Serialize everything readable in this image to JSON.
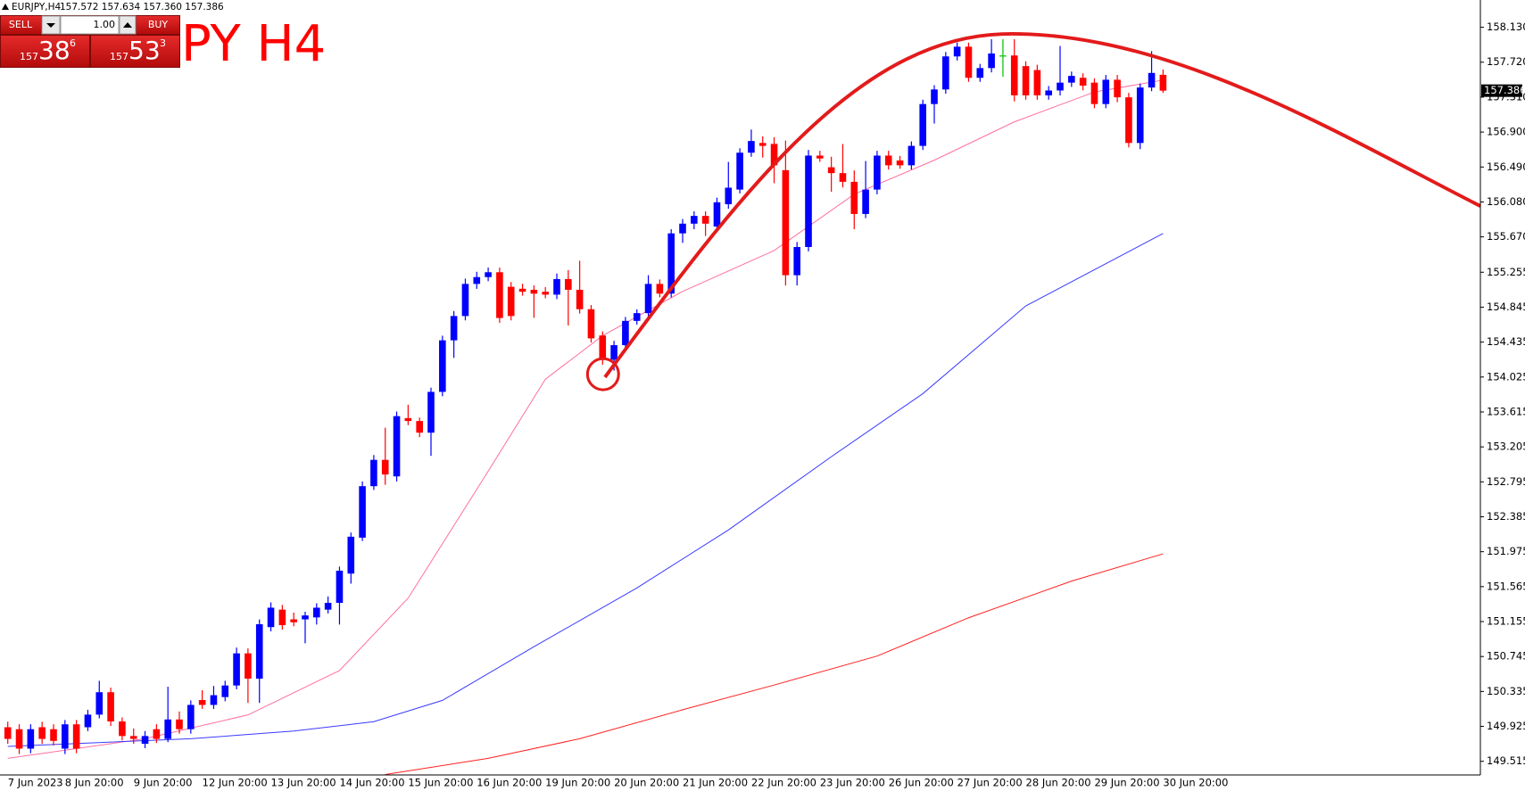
{
  "header": {
    "symbol": "EURJPY,H4",
    "ohlc": "157.572 157.634 157.360 157.386"
  },
  "panel": {
    "sell": "SELL",
    "buy": "BUY",
    "lot": "1.00",
    "bid": {
      "prefix": "157",
      "digits": "38",
      "point": "6"
    },
    "ask": {
      "prefix": "157",
      "digits": "53",
      "point": "3"
    }
  },
  "chart_data": {
    "type": "candlestick",
    "title": "PY H4",
    "up_color": "#0000ff",
    "down_color": "#ff0000",
    "doji_color": "#00c000",
    "ylim": [
      149.355,
      158.45
    ],
    "yticks": [
      {
        "value": 158.13,
        "label": "158.130"
      },
      {
        "value": 157.72,
        "label": "157.720"
      },
      {
        "value": 157.31,
        "label": "157.310"
      },
      {
        "value": 156.9,
        "label": "156.900"
      },
      {
        "value": 156.49,
        "label": "156.490"
      },
      {
        "value": 156.08,
        "label": "156.080"
      },
      {
        "value": 155.67,
        "label": "155.670"
      },
      155.255,
      154.845,
      154.435,
      154.025,
      153.615,
      153.205,
      152.795,
      152.385,
      151.975,
      151.565,
      151.155,
      150.745,
      150.335,
      149.925,
      149.515
    ],
    "last_price": {
      "value": 157.386,
      "label": "157.386"
    },
    "categories": [
      "7 Jun 2023",
      null,
      null,
      null,
      null,
      "8 Jun 20:00",
      null,
      null,
      null,
      null,
      null,
      "9 Jun 20:00",
      null,
      null,
      null,
      null,
      null,
      "12 Jun 20:00",
      null,
      null,
      null,
      null,
      null,
      "13 Jun 20:00",
      null,
      null,
      null,
      null,
      null,
      "14 Jun 20:00",
      null,
      null,
      null,
      null,
      null,
      "15 Jun 20:00",
      null,
      null,
      null,
      null,
      null,
      "16 Jun 20:00",
      null,
      null,
      null,
      null,
      null,
      "19 Jun 20:00",
      null,
      null,
      null,
      null,
      null,
      "20 Jun 20:00",
      null,
      null,
      null,
      null,
      null,
      "21 Jun 20:00",
      null,
      null,
      null,
      null,
      null,
      "22 Jun 20:00",
      null,
      null,
      null,
      null,
      null,
      "23 Jun 20:00",
      null,
      null,
      null,
      null,
      null,
      "26 Jun 20:00",
      null,
      null,
      null,
      null,
      null,
      "27 Jun 20:00",
      null,
      null,
      null,
      null,
      null,
      "28 Jun 20:00",
      null,
      null,
      null,
      null,
      null,
      "29 Jun 20:00",
      null,
      null,
      null,
      null,
      null,
      "30 Jun 20:00"
    ],
    "candles": [
      [
        149.915,
        149.98,
        149.72,
        149.778
      ],
      [
        149.892,
        149.95,
        149.6,
        149.664
      ],
      [
        149.664,
        149.95,
        149.61,
        149.892
      ],
      [
        149.915,
        149.98,
        149.72,
        149.778
      ],
      [
        149.892,
        149.95,
        149.7,
        149.755
      ],
      [
        149.664,
        150.0,
        149.6,
        149.949
      ],
      [
        149.949,
        150.0,
        149.61,
        149.664
      ],
      [
        149.915,
        150.12,
        149.87,
        150.063
      ],
      [
        150.063,
        150.46,
        150.02,
        150.326
      ],
      [
        150.326,
        150.38,
        149.93,
        149.983
      ],
      [
        149.983,
        150.03,
        149.76,
        149.812
      ],
      [
        149.812,
        149.9,
        149.72,
        149.778
      ],
      [
        149.721,
        149.87,
        149.67,
        149.812
      ],
      [
        149.892,
        149.95,
        149.73,
        149.778
      ],
      [
        149.778,
        150.39,
        149.74,
        150.006
      ],
      [
        150.006,
        150.1,
        149.84,
        149.892
      ],
      [
        149.892,
        150.23,
        149.84,
        150.177
      ],
      [
        150.234,
        150.35,
        150.13,
        150.177
      ],
      [
        150.177,
        150.4,
        150.13,
        150.291
      ],
      [
        150.269,
        150.46,
        150.22,
        150.405
      ],
      [
        150.405,
        150.85,
        150.36,
        150.782
      ],
      [
        150.782,
        150.84,
        150.2,
        150.485
      ],
      [
        150.485,
        151.18,
        150.2,
        151.124
      ],
      [
        151.09,
        151.38,
        151.04,
        151.318
      ],
      [
        151.295,
        151.35,
        151.06,
        151.113
      ],
      [
        151.181,
        151.26,
        151.1,
        151.147
      ],
      [
        151.181,
        151.27,
        150.9,
        151.227
      ],
      [
        151.204,
        151.37,
        151.12,
        151.318
      ],
      [
        151.295,
        151.45,
        151.25,
        151.375
      ],
      [
        151.375,
        151.8,
        151.12,
        151.752
      ],
      [
        151.718,
        152.2,
        151.6,
        152.151
      ],
      [
        152.14,
        152.8,
        152.1,
        152.744
      ],
      [
        152.744,
        153.11,
        152.7,
        153.053
      ],
      [
        153.053,
        153.43,
        152.76,
        152.881
      ],
      [
        152.859,
        153.62,
        152.8,
        153.566
      ],
      [
        153.543,
        153.7,
        153.46,
        153.509
      ],
      [
        153.509,
        153.55,
        153.32,
        153.372
      ],
      [
        153.372,
        153.9,
        153.1,
        153.851
      ],
      [
        153.851,
        154.51,
        153.8,
        154.456
      ],
      [
        154.456,
        154.8,
        154.25,
        154.741
      ],
      [
        154.741,
        155.18,
        154.69,
        155.118
      ],
      [
        155.118,
        155.26,
        155.06,
        155.198
      ],
      [
        155.198,
        155.31,
        155.15,
        155.255
      ],
      [
        155.255,
        155.31,
        154.66,
        154.718
      ],
      [
        155.084,
        155.14,
        154.69,
        154.741
      ],
      [
        155.061,
        155.12,
        154.98,
        155.026
      ],
      [
        155.049,
        155.1,
        154.72,
        155.004
      ],
      [
        155.026,
        155.08,
        154.95,
        154.992
      ],
      [
        154.992,
        155.24,
        154.94,
        155.175
      ],
      [
        155.175,
        155.28,
        154.63,
        155.049
      ],
      [
        155.049,
        155.39,
        154.77,
        154.821
      ],
      [
        154.821,
        154.87,
        154.43,
        154.479
      ],
      [
        154.513,
        154.56,
        154.17,
        154.228
      ],
      [
        154.228,
        154.45,
        154.1,
        154.399
      ],
      [
        154.399,
        154.73,
        154.35,
        154.684
      ],
      [
        154.684,
        154.82,
        154.64,
        154.775
      ],
      [
        154.775,
        155.22,
        154.72,
        155.118
      ],
      [
        155.118,
        155.17,
        154.96,
        155.004
      ],
      [
        155.004,
        155.76,
        154.96,
        155.711
      ],
      [
        155.711,
        155.88,
        155.6,
        155.825
      ],
      [
        155.825,
        155.97,
        155.76,
        155.916
      ],
      [
        155.916,
        155.97,
        155.68,
        155.825
      ],
      [
        155.791,
        156.13,
        155.75,
        156.076
      ],
      [
        156.053,
        156.55,
        156.0,
        156.247
      ],
      [
        156.225,
        156.71,
        156.18,
        156.658
      ],
      [
        156.658,
        156.93,
        156.61,
        156.795
      ],
      [
        156.772,
        156.85,
        156.6,
        156.738
      ],
      [
        156.761,
        156.84,
        156.3,
        156.51
      ],
      [
        156.453,
        156.8,
        155.1,
        155.22
      ],
      [
        155.22,
        155.61,
        155.1,
        155.551
      ],
      [
        155.551,
        156.69,
        155.5,
        156.624
      ],
      [
        156.624,
        156.68,
        156.55,
        156.59
      ],
      [
        156.487,
        156.61,
        156.2,
        156.418
      ],
      [
        156.418,
        156.76,
        156.25,
        156.316
      ],
      [
        156.316,
        156.45,
        155.76,
        155.939
      ],
      [
        155.939,
        156.56,
        155.89,
        156.225
      ],
      [
        156.225,
        156.68,
        156.17,
        156.624
      ],
      [
        156.624,
        156.68,
        156.46,
        156.51
      ],
      [
        156.567,
        156.62,
        156.47,
        156.51
      ],
      [
        156.51,
        156.79,
        156.46,
        156.738
      ],
      [
        156.738,
        157.28,
        156.69,
        157.229
      ],
      [
        157.229,
        157.45,
        157.0,
        157.4
      ],
      [
        157.4,
        157.84,
        157.35,
        157.788
      ],
      [
        157.788,
        157.95,
        157.74,
        157.902
      ],
      [
        157.902,
        157.95,
        157.49,
        157.537
      ],
      [
        157.537,
        157.7,
        157.49,
        157.651
      ],
      [
        157.651,
        157.99,
        157.6,
        157.822
      ],
      [
        157.799,
        157.99,
        157.55,
        157.799
      ],
      [
        157.799,
        157.99,
        157.26,
        157.331
      ],
      [
        157.674,
        157.73,
        157.28,
        157.331
      ],
      [
        157.628,
        157.69,
        157.28,
        157.331
      ],
      [
        157.331,
        157.44,
        157.28,
        157.388
      ],
      [
        157.388,
        157.91,
        157.33,
        157.48
      ],
      [
        157.48,
        157.61,
        157.43,
        157.559
      ],
      [
        157.537,
        157.59,
        157.39,
        157.445
      ],
      [
        157.48,
        157.53,
        157.18,
        157.229
      ],
      [
        157.229,
        157.57,
        157.18,
        157.514
      ],
      [
        157.514,
        157.57,
        157.25,
        157.308
      ],
      [
        157.308,
        157.36,
        156.72,
        156.772
      ],
      [
        156.772,
        157.47,
        156.7,
        157.423
      ],
      [
        157.423,
        157.85,
        157.38,
        157.594
      ],
      [
        157.572,
        157.634,
        157.36,
        157.386
      ]
    ],
    "lines": [
      {
        "color": "#ff6fa0",
        "x": [
          0,
          12,
          21,
          29,
          35,
          42,
          47,
          52,
          59,
          67,
          74,
          81,
          88,
          95,
          101
        ],
        "values": [
          149.55,
          149.78,
          150.06,
          150.58,
          151.43,
          152.92,
          154.0,
          154.51,
          155.03,
          155.51,
          156.17,
          156.57,
          157.02,
          157.37,
          157.51
        ]
      },
      {
        "color": "#3a3aff",
        "x": [
          0,
          16,
          25,
          32,
          38,
          46,
          55,
          63,
          72,
          80,
          89,
          101
        ],
        "values": [
          149.69,
          149.78,
          149.87,
          149.98,
          150.23,
          150.86,
          151.55,
          152.23,
          153.09,
          153.83,
          154.86,
          155.71
        ]
      },
      {
        "color": "#ff2020",
        "x": [
          33,
          42,
          50,
          59,
          67,
          76,
          84,
          93,
          101
        ],
        "values": [
          149.36,
          149.55,
          149.78,
          150.12,
          150.41,
          150.75,
          151.2,
          151.63,
          151.95
        ]
      }
    ]
  }
}
